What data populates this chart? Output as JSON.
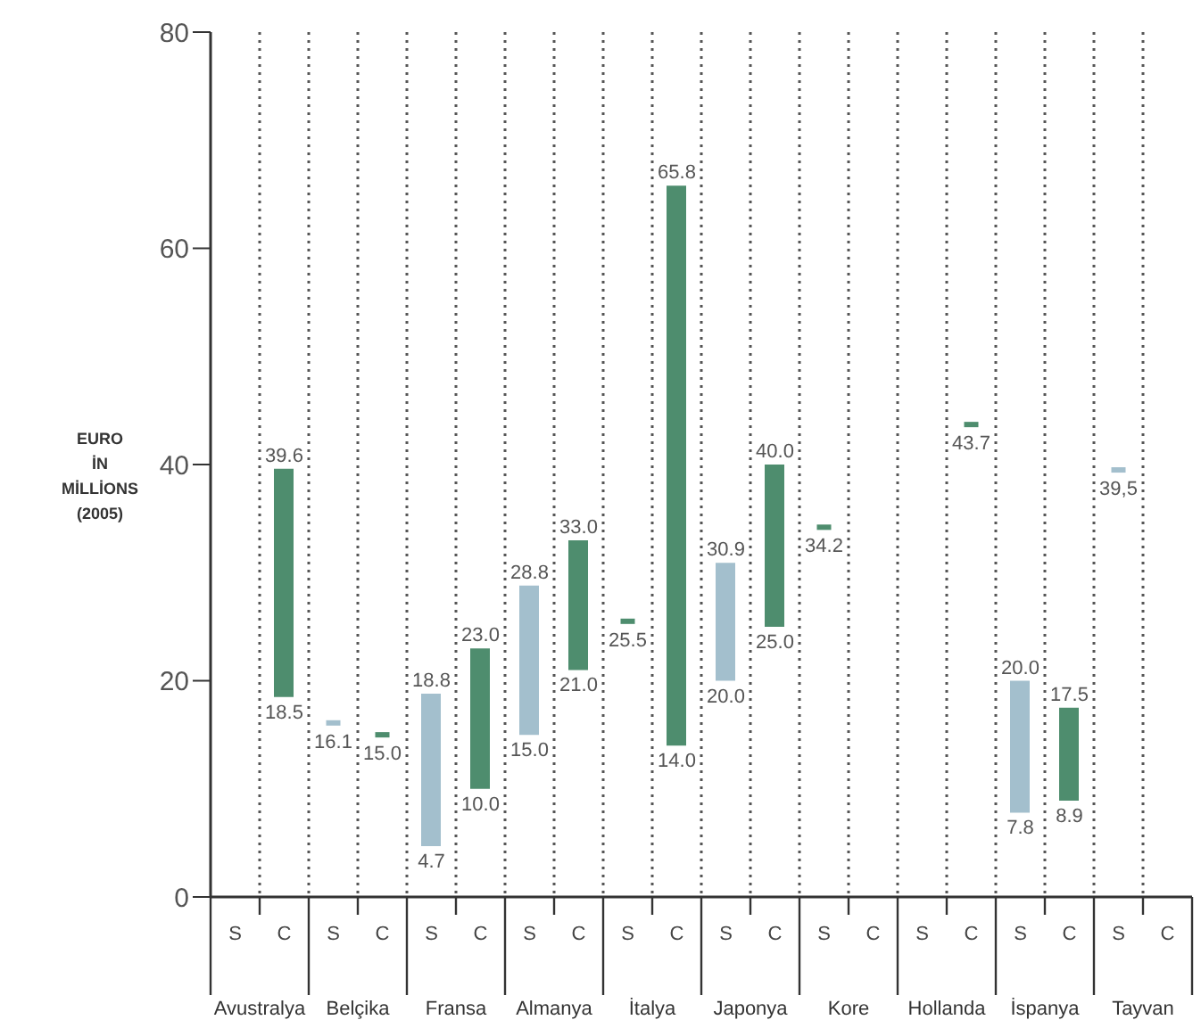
{
  "chart_data": {
    "type": "bar",
    "ylabel": "EURO\nİN\nMİLLİONS\n(2005)",
    "categories": [
      "Avustralya",
      "Belçika",
      "Fransa",
      "Almanya",
      "İtalya",
      "Japonya",
      "Kore",
      "Hollanda",
      "İspanya",
      "Tayvan"
    ],
    "ylim": [
      0,
      80
    ],
    "yticks": [
      0,
      20,
      40,
      60,
      80
    ],
    "grid": "x",
    "series": [
      {
        "name": "S",
        "color": "#a3bfcd",
        "values": [
          null,
          null,
          14.1,
          13.8,
          null,
          10.9,
          null,
          null,
          12.2,
          null
        ],
        "base": [
          null,
          null,
          4.7,
          15.0,
          null,
          20.0,
          null,
          null,
          7.8,
          null
        ]
      },
      {
        "name": "C",
        "color": "#4e8d6e",
        "values": [
          21.1,
          null,
          13.0,
          12.0,
          51.8,
          15.0,
          null,
          null,
          8.6,
          null
        ],
        "base": [
          18.5,
          null,
          10.0,
          21.0,
          14.0,
          25.0,
          null,
          null,
          8.9,
          null
        ]
      },
      {
        "type": "scatter",
        "marker": "square",
        "values": [
          null,
          16.1,
          null,
          null,
          25.5,
          null,
          34.2,
          null,
          null,
          39.5
        ],
        "colors": [
          null,
          "#a3bfcd",
          null,
          null,
          "#4e8d6e",
          null,
          "#4e8d6e",
          null,
          null,
          "#a3bfcd"
        ],
        "value_labels": [
          null,
          "16.1",
          null,
          null,
          "25.5",
          null,
          "34.2",
          null,
          null,
          "39,5"
        ]
      },
      {
        "type": "scatter",
        "marker": "square",
        "values": [
          null,
          15.0,
          null,
          null,
          null,
          null,
          null,
          43.7,
          null,
          null
        ],
        "colors": [
          null,
          "#4e8d6e",
          null,
          null,
          null,
          null,
          null,
          "#4e8d6e",
          null,
          null
        ],
        "value_labels": [
          null,
          "15.0",
          null,
          null,
          null,
          null,
          null,
          "43.7",
          null,
          null
        ]
      }
    ],
    "annotations": [
      "39.6",
      "18.5",
      "18.8",
      "4.7",
      "23.0",
      "10.0",
      "28.8",
      "15.0",
      "33.0",
      "21.0",
      "65.8",
      "14.0",
      "30.9",
      "20.0",
      "40.0",
      "25.0",
      "20.0",
      "7.8",
      "17.5",
      "8.9"
    ]
  }
}
